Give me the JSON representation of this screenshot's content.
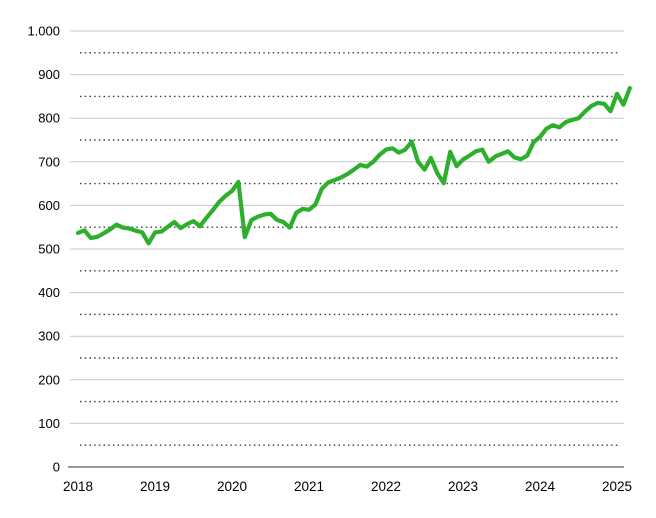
{
  "chart_data": {
    "type": "line",
    "title": "",
    "xlabel": "",
    "ylabel": "",
    "x": {
      "tick_labels": [
        "2018",
        "2019",
        "2020",
        "2021",
        "2022",
        "2023",
        "2024",
        "2025"
      ],
      "points_per_year": 12,
      "start_label": "2018"
    },
    "y": {
      "range": [
        0,
        1000
      ],
      "major_tick_step": 100,
      "minor_tick_step": 50,
      "tick_labels": [
        "0",
        "100",
        "200",
        "300",
        "400",
        "500",
        "600",
        "700",
        "800",
        "900",
        "1.000"
      ]
    },
    "grid": {
      "major_style": "solid",
      "major_color": "#c6c6c6",
      "minor_style": "dotted",
      "minor_color": "#3d3d3d",
      "baseline_color": "#9a9a9a"
    },
    "legend": "none",
    "series": [
      {
        "name": "value",
        "color": "#2cb02c",
        "frequency": "monthly",
        "values": [
          537,
          543,
          525,
          528,
          536,
          545,
          556,
          549,
          547,
          542,
          538,
          513,
          538,
          540,
          551,
          562,
          548,
          557,
          564,
          552,
          571,
          589,
          608,
          622,
          633,
          654,
          527,
          566,
          574,
          579,
          581,
          567,
          562,
          549,
          583,
          592,
          590,
          602,
          638,
          653,
          658,
          664,
          672,
          682,
          693,
          689,
          700,
          716,
          728,
          731,
          721,
          728,
          746,
          700,
          682,
          709,
          674,
          651,
          723,
          690,
          705,
          714,
          724,
          728,
          700,
          712,
          718,
          724,
          710,
          706,
          714,
          745,
          757,
          776,
          784,
          779,
          791,
          796,
          800,
          815,
          828,
          835,
          833,
          816,
          856,
          831,
          869
        ]
      }
    ]
  }
}
